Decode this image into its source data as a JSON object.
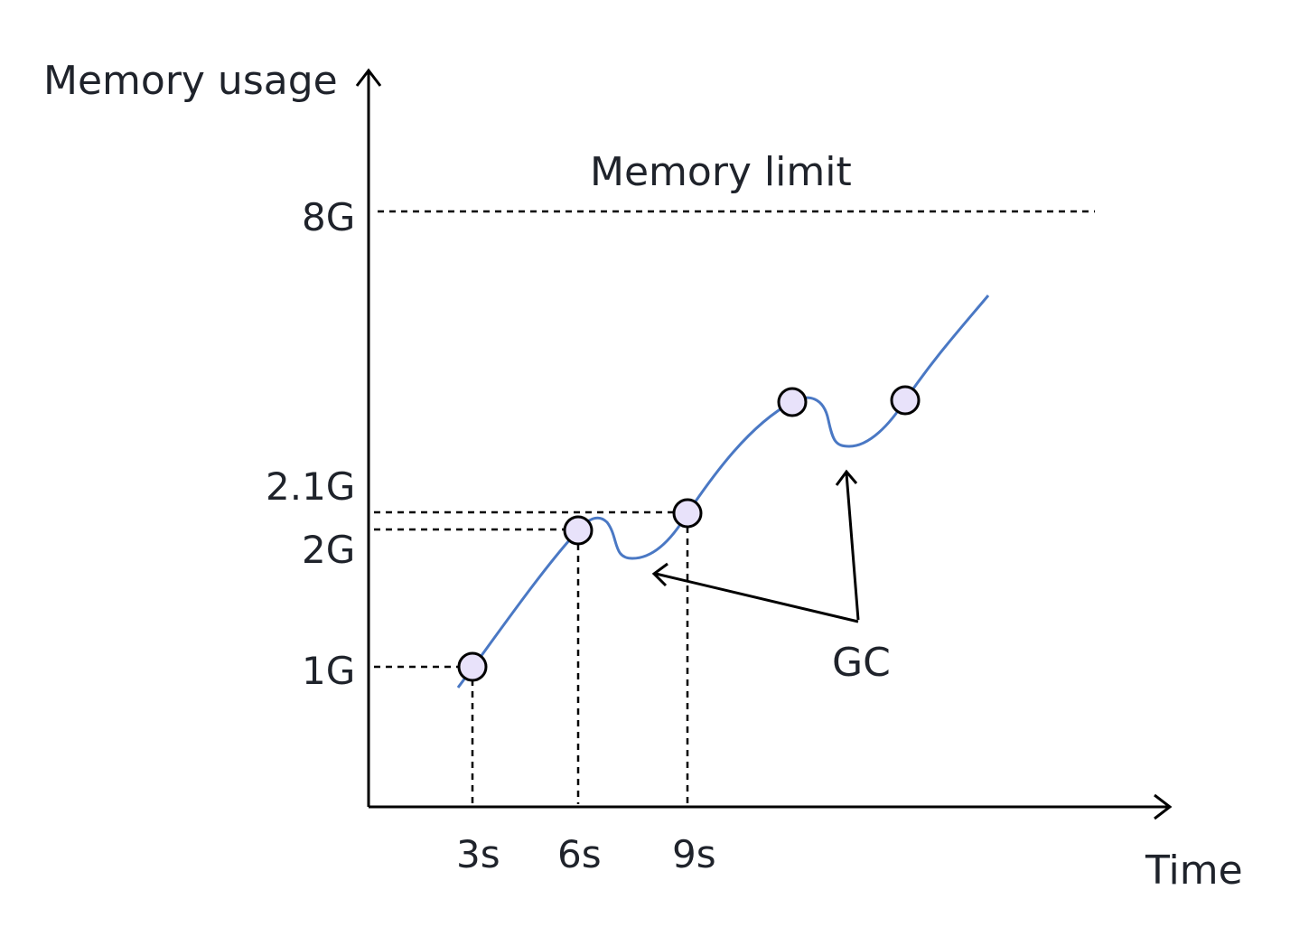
{
  "diagram": {
    "y_axis_label": "Memory usage",
    "x_axis_label": "Time",
    "limit_label": "Memory limit",
    "gc_label": "GC",
    "y_ticks": [
      "8G",
      "2.1G",
      "2G",
      "1G"
    ],
    "x_ticks": [
      "3s",
      "6s",
      "9s"
    ],
    "colors": {
      "curve": "#4a78c4",
      "marker_fill": "#e8e2fa",
      "ink": "#000000",
      "text": "#1f232b"
    }
  }
}
